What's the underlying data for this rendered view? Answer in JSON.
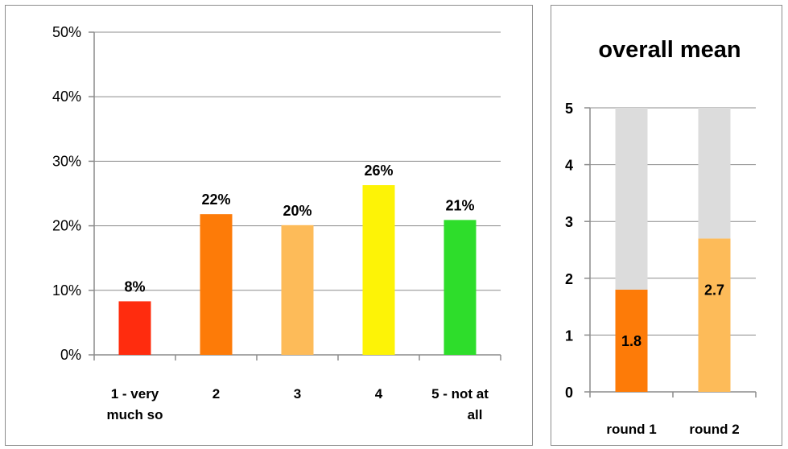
{
  "chart_data": [
    {
      "type": "bar",
      "title": "",
      "xlabel": "",
      "ylabel": "",
      "categories": [
        [
          "1 - very",
          "much so"
        ],
        [
          "2"
        ],
        [
          "3"
        ],
        [
          "4"
        ],
        [
          "5 - not at",
          "all"
        ]
      ],
      "values": [
        8.3,
        21.8,
        20.1,
        26.3,
        20.9
      ],
      "data_labels": [
        "8%",
        "22%",
        "20%",
        "26%",
        "21%"
      ],
      "colors": [
        "#ff2c0e",
        "#fd7b08",
        "#fdbb59",
        "#fdf306",
        "#2edd2b"
      ],
      "ylim": [
        0,
        50
      ],
      "yticks": [
        "0%",
        "10%",
        "20%",
        "30%",
        "40%",
        "50%"
      ],
      "grid": true,
      "legend": "none"
    },
    {
      "type": "bar",
      "title": "overall mean",
      "xlabel": "",
      "ylabel": "",
      "categories": [
        "round 1",
        "round 2"
      ],
      "series": [
        {
          "values": [
            1.8,
            2.7
          ],
          "colors": [
            "#fd7b08",
            "#fdbb59"
          ]
        },
        {
          "values": [
            3.2,
            2.3
          ],
          "colors": [
            "#dcdcdc",
            "#dcdcdc"
          ]
        }
      ],
      "stacked": true,
      "data_labels": [
        "1.8",
        "2.7"
      ],
      "ylim": [
        0,
        5
      ],
      "yticks": [
        "0",
        "1",
        "2",
        "3",
        "4",
        "5"
      ],
      "grid": true,
      "legend": "none"
    }
  ]
}
